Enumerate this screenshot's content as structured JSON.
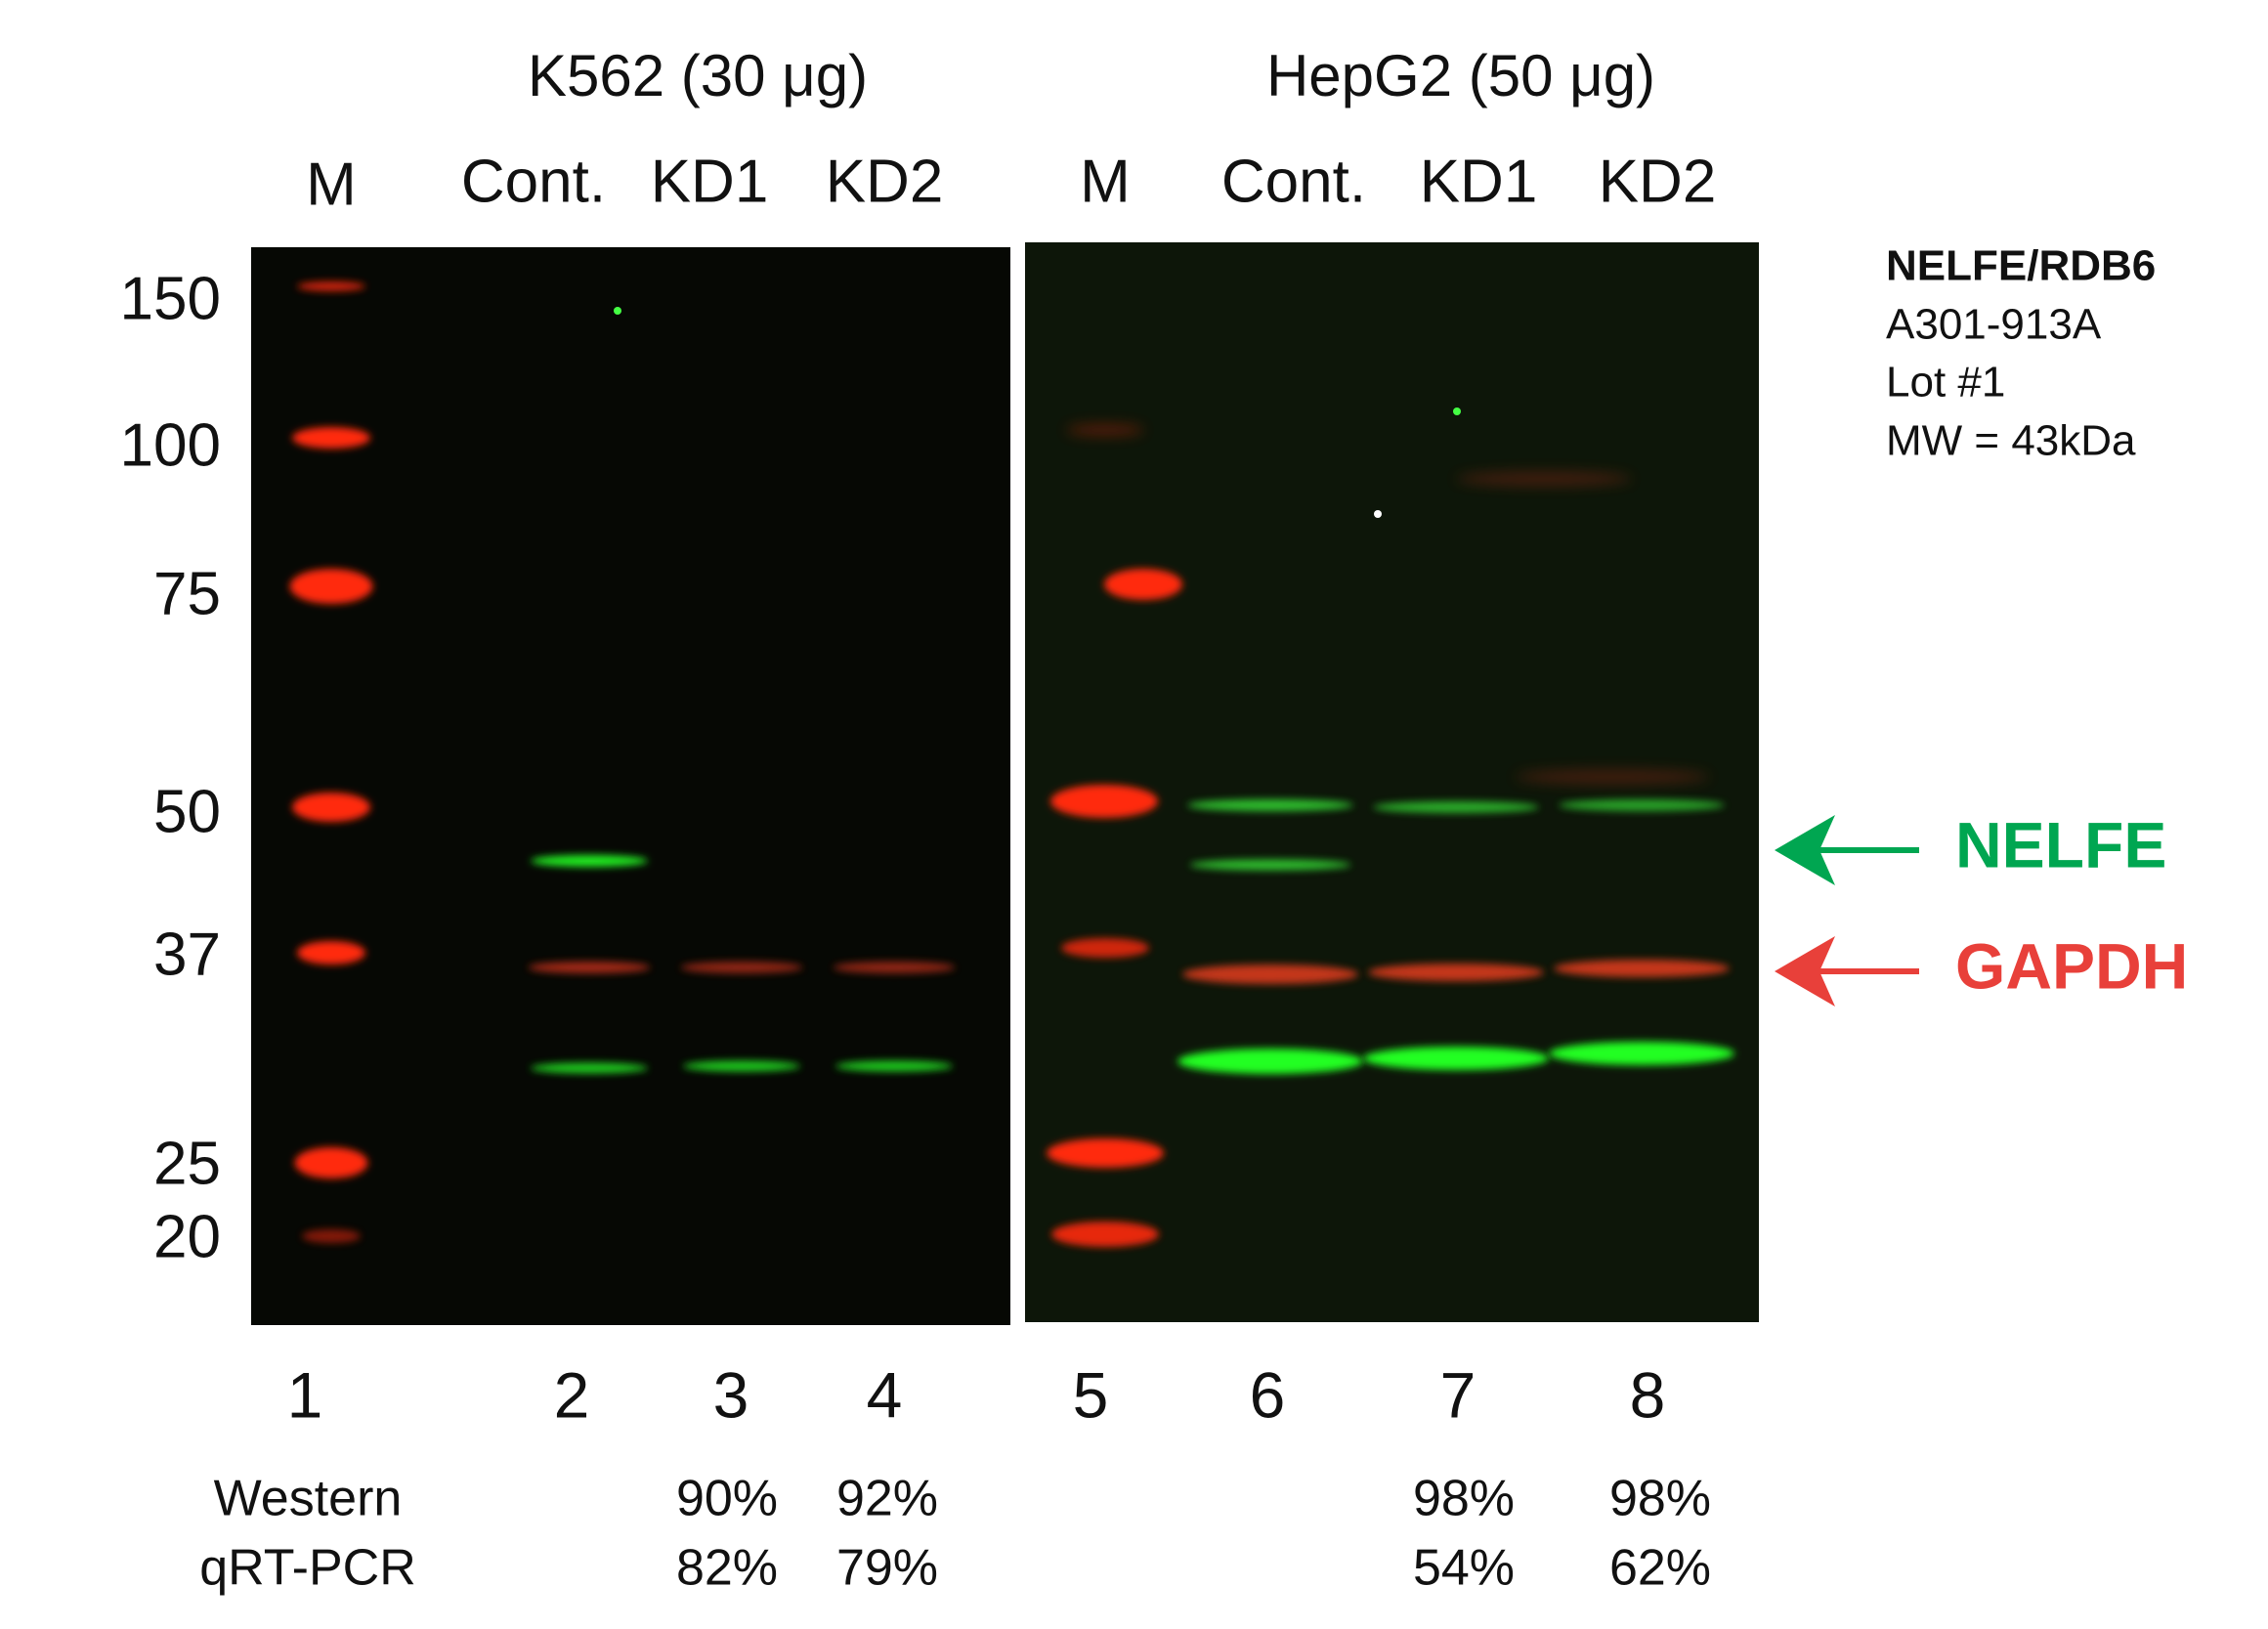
{
  "panels": [
    {
      "title": "K562 (30 μg)",
      "lanes": [
        "M",
        "Cont.",
        "KD1",
        "KD2"
      ]
    },
    {
      "title": "HepG2 (50 μg)",
      "lanes": [
        "M",
        "Cont.",
        "KD1",
        "KD2"
      ]
    }
  ],
  "markers": [
    150,
    100,
    75,
    50,
    37,
    25,
    20
  ],
  "antibody": {
    "target": "NELFE/RDB6",
    "catalog": "A301-913A",
    "lot": "Lot #1",
    "mw": "MW = 43kDa"
  },
  "bands": {
    "target": "NELFE",
    "control": "GAPDH"
  },
  "lane_numbers": [
    "1",
    "2",
    "3",
    "4",
    "5",
    "6",
    "7",
    "8"
  ],
  "table": {
    "rows": [
      {
        "label": "Western",
        "values": [
          "90%",
          "92%",
          "98%",
          "98%"
        ]
      },
      {
        "label": "qRT-PCR",
        "values": [
          "82%",
          "79%",
          "54%",
          "62%"
        ]
      }
    ]
  }
}
